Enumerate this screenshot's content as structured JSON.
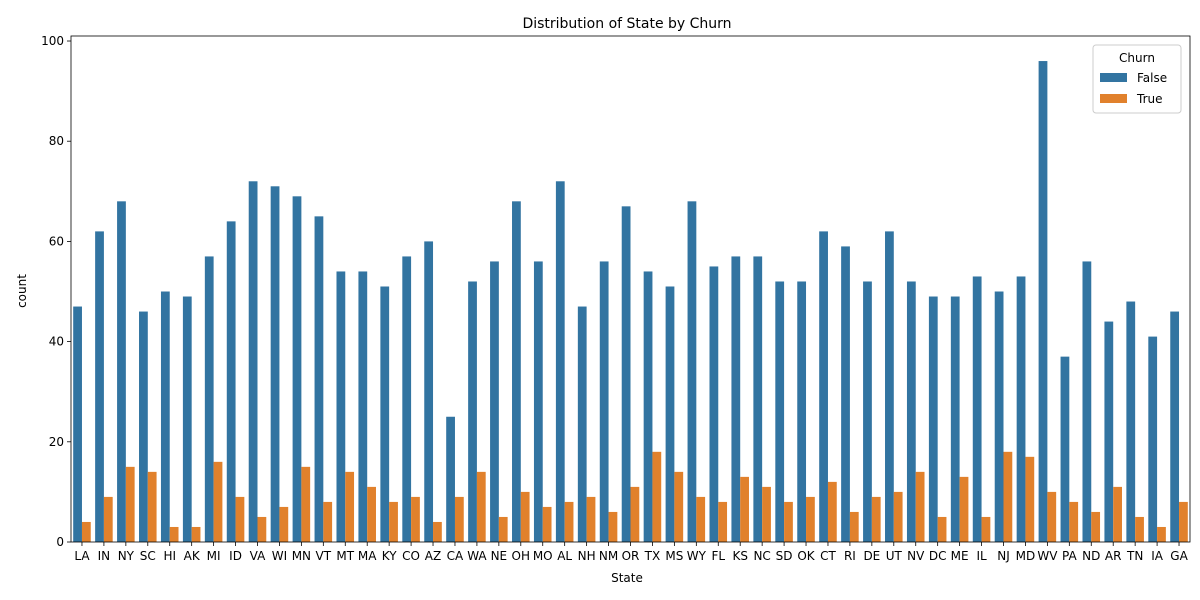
{
  "chart_data": {
    "type": "bar",
    "title": "Distribution of State by Churn",
    "xlabel": "State",
    "ylabel": "count",
    "ylim": [
      0,
      101
    ],
    "yticks": [
      0,
      20,
      40,
      60,
      80,
      100
    ],
    "grid": false,
    "legend": {
      "title": "Churn",
      "placement": "top-right"
    },
    "categories": [
      "LA",
      "IN",
      "NY",
      "SC",
      "HI",
      "AK",
      "MI",
      "ID",
      "VA",
      "WI",
      "MN",
      "VT",
      "MT",
      "MA",
      "KY",
      "CO",
      "AZ",
      "CA",
      "WA",
      "NE",
      "OH",
      "MO",
      "AL",
      "NH",
      "NM",
      "OR",
      "TX",
      "MS",
      "WY",
      "FL",
      "KS",
      "NC",
      "SD",
      "OK",
      "CT",
      "RI",
      "DE",
      "UT",
      "NV",
      "DC",
      "ME",
      "IL",
      "NJ",
      "MD",
      "WV",
      "PA",
      "ND",
      "AR",
      "TN",
      "IA",
      "GA"
    ],
    "series": [
      {
        "name": "False",
        "color": "#3274a1",
        "values": [
          47,
          62,
          68,
          46,
          50,
          49,
          57,
          64,
          72,
          71,
          69,
          65,
          54,
          54,
          51,
          57,
          60,
          25,
          52,
          56,
          68,
          56,
          72,
          47,
          56,
          67,
          54,
          51,
          68,
          55,
          57,
          57,
          52,
          52,
          62,
          59,
          52,
          62,
          52,
          49,
          49,
          53,
          50,
          53,
          96,
          37,
          56,
          44,
          48,
          41,
          46
        ]
      },
      {
        "name": "True",
        "color": "#e1812c",
        "values": [
          4,
          9,
          15,
          14,
          3,
          3,
          16,
          9,
          5,
          7,
          15,
          8,
          14,
          11,
          8,
          9,
          4,
          9,
          14,
          5,
          10,
          7,
          8,
          9,
          6,
          11,
          18,
          14,
          9,
          8,
          13,
          11,
          8,
          9,
          12,
          6,
          9,
          10,
          14,
          5,
          13,
          5,
          18,
          17,
          10,
          8,
          6,
          11,
          5,
          3,
          8
        ]
      }
    ]
  }
}
